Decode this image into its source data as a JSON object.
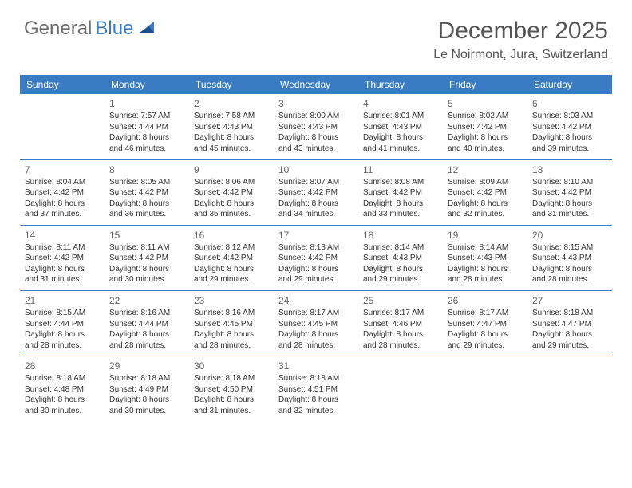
{
  "brand": {
    "word1": "General",
    "word2": "Blue",
    "color_gray": "#6e6e6e",
    "color_blue": "#3a7cc4"
  },
  "title": "December 2025",
  "location": "Le Noirmont, Jura, Switzerland",
  "header_bg": "#3a7cc4",
  "header_fg": "#ffffff",
  "divider_color": "#3a7cc4",
  "text_color": "#333333",
  "daynum_color": "#666666",
  "font_family": "Arial, Helvetica, sans-serif",
  "th_fontsize": 12,
  "cell_fontsize": 10,
  "title_fontsize": 30,
  "location_fontsize": 16,
  "columns": [
    "Sunday",
    "Monday",
    "Tuesday",
    "Wednesday",
    "Thursday",
    "Friday",
    "Saturday"
  ],
  "weeks": [
    [
      null,
      {
        "d": "1",
        "sr": "Sunrise: 7:57 AM",
        "ss": "Sunset: 4:44 PM",
        "dl1": "Daylight: 8 hours",
        "dl2": "and 46 minutes."
      },
      {
        "d": "2",
        "sr": "Sunrise: 7:58 AM",
        "ss": "Sunset: 4:43 PM",
        "dl1": "Daylight: 8 hours",
        "dl2": "and 45 minutes."
      },
      {
        "d": "3",
        "sr": "Sunrise: 8:00 AM",
        "ss": "Sunset: 4:43 PM",
        "dl1": "Daylight: 8 hours",
        "dl2": "and 43 minutes."
      },
      {
        "d": "4",
        "sr": "Sunrise: 8:01 AM",
        "ss": "Sunset: 4:43 PM",
        "dl1": "Daylight: 8 hours",
        "dl2": "and 41 minutes."
      },
      {
        "d": "5",
        "sr": "Sunrise: 8:02 AM",
        "ss": "Sunset: 4:42 PM",
        "dl1": "Daylight: 8 hours",
        "dl2": "and 40 minutes."
      },
      {
        "d": "6",
        "sr": "Sunrise: 8:03 AM",
        "ss": "Sunset: 4:42 PM",
        "dl1": "Daylight: 8 hours",
        "dl2": "and 39 minutes."
      }
    ],
    [
      {
        "d": "7",
        "sr": "Sunrise: 8:04 AM",
        "ss": "Sunset: 4:42 PM",
        "dl1": "Daylight: 8 hours",
        "dl2": "and 37 minutes."
      },
      {
        "d": "8",
        "sr": "Sunrise: 8:05 AM",
        "ss": "Sunset: 4:42 PM",
        "dl1": "Daylight: 8 hours",
        "dl2": "and 36 minutes."
      },
      {
        "d": "9",
        "sr": "Sunrise: 8:06 AM",
        "ss": "Sunset: 4:42 PM",
        "dl1": "Daylight: 8 hours",
        "dl2": "and 35 minutes."
      },
      {
        "d": "10",
        "sr": "Sunrise: 8:07 AM",
        "ss": "Sunset: 4:42 PM",
        "dl1": "Daylight: 8 hours",
        "dl2": "and 34 minutes."
      },
      {
        "d": "11",
        "sr": "Sunrise: 8:08 AM",
        "ss": "Sunset: 4:42 PM",
        "dl1": "Daylight: 8 hours",
        "dl2": "and 33 minutes."
      },
      {
        "d": "12",
        "sr": "Sunrise: 8:09 AM",
        "ss": "Sunset: 4:42 PM",
        "dl1": "Daylight: 8 hours",
        "dl2": "and 32 minutes."
      },
      {
        "d": "13",
        "sr": "Sunrise: 8:10 AM",
        "ss": "Sunset: 4:42 PM",
        "dl1": "Daylight: 8 hours",
        "dl2": "and 31 minutes."
      }
    ],
    [
      {
        "d": "14",
        "sr": "Sunrise: 8:11 AM",
        "ss": "Sunset: 4:42 PM",
        "dl1": "Daylight: 8 hours",
        "dl2": "and 31 minutes."
      },
      {
        "d": "15",
        "sr": "Sunrise: 8:11 AM",
        "ss": "Sunset: 4:42 PM",
        "dl1": "Daylight: 8 hours",
        "dl2": "and 30 minutes."
      },
      {
        "d": "16",
        "sr": "Sunrise: 8:12 AM",
        "ss": "Sunset: 4:42 PM",
        "dl1": "Daylight: 8 hours",
        "dl2": "and 29 minutes."
      },
      {
        "d": "17",
        "sr": "Sunrise: 8:13 AM",
        "ss": "Sunset: 4:42 PM",
        "dl1": "Daylight: 8 hours",
        "dl2": "and 29 minutes."
      },
      {
        "d": "18",
        "sr": "Sunrise: 8:14 AM",
        "ss": "Sunset: 4:43 PM",
        "dl1": "Daylight: 8 hours",
        "dl2": "and 29 minutes."
      },
      {
        "d": "19",
        "sr": "Sunrise: 8:14 AM",
        "ss": "Sunset: 4:43 PM",
        "dl1": "Daylight: 8 hours",
        "dl2": "and 28 minutes."
      },
      {
        "d": "20",
        "sr": "Sunrise: 8:15 AM",
        "ss": "Sunset: 4:43 PM",
        "dl1": "Daylight: 8 hours",
        "dl2": "and 28 minutes."
      }
    ],
    [
      {
        "d": "21",
        "sr": "Sunrise: 8:15 AM",
        "ss": "Sunset: 4:44 PM",
        "dl1": "Daylight: 8 hours",
        "dl2": "and 28 minutes."
      },
      {
        "d": "22",
        "sr": "Sunrise: 8:16 AM",
        "ss": "Sunset: 4:44 PM",
        "dl1": "Daylight: 8 hours",
        "dl2": "and 28 minutes."
      },
      {
        "d": "23",
        "sr": "Sunrise: 8:16 AM",
        "ss": "Sunset: 4:45 PM",
        "dl1": "Daylight: 8 hours",
        "dl2": "and 28 minutes."
      },
      {
        "d": "24",
        "sr": "Sunrise: 8:17 AM",
        "ss": "Sunset: 4:45 PM",
        "dl1": "Daylight: 8 hours",
        "dl2": "and 28 minutes."
      },
      {
        "d": "25",
        "sr": "Sunrise: 8:17 AM",
        "ss": "Sunset: 4:46 PM",
        "dl1": "Daylight: 8 hours",
        "dl2": "and 28 minutes."
      },
      {
        "d": "26",
        "sr": "Sunrise: 8:17 AM",
        "ss": "Sunset: 4:47 PM",
        "dl1": "Daylight: 8 hours",
        "dl2": "and 29 minutes."
      },
      {
        "d": "27",
        "sr": "Sunrise: 8:18 AM",
        "ss": "Sunset: 4:47 PM",
        "dl1": "Daylight: 8 hours",
        "dl2": "and 29 minutes."
      }
    ],
    [
      {
        "d": "28",
        "sr": "Sunrise: 8:18 AM",
        "ss": "Sunset: 4:48 PM",
        "dl1": "Daylight: 8 hours",
        "dl2": "and 30 minutes."
      },
      {
        "d": "29",
        "sr": "Sunrise: 8:18 AM",
        "ss": "Sunset: 4:49 PM",
        "dl1": "Daylight: 8 hours",
        "dl2": "and 30 minutes."
      },
      {
        "d": "30",
        "sr": "Sunrise: 8:18 AM",
        "ss": "Sunset: 4:50 PM",
        "dl1": "Daylight: 8 hours",
        "dl2": "and 31 minutes."
      },
      {
        "d": "31",
        "sr": "Sunrise: 8:18 AM",
        "ss": "Sunset: 4:51 PM",
        "dl1": "Daylight: 8 hours",
        "dl2": "and 32 minutes."
      },
      null,
      null,
      null
    ]
  ]
}
